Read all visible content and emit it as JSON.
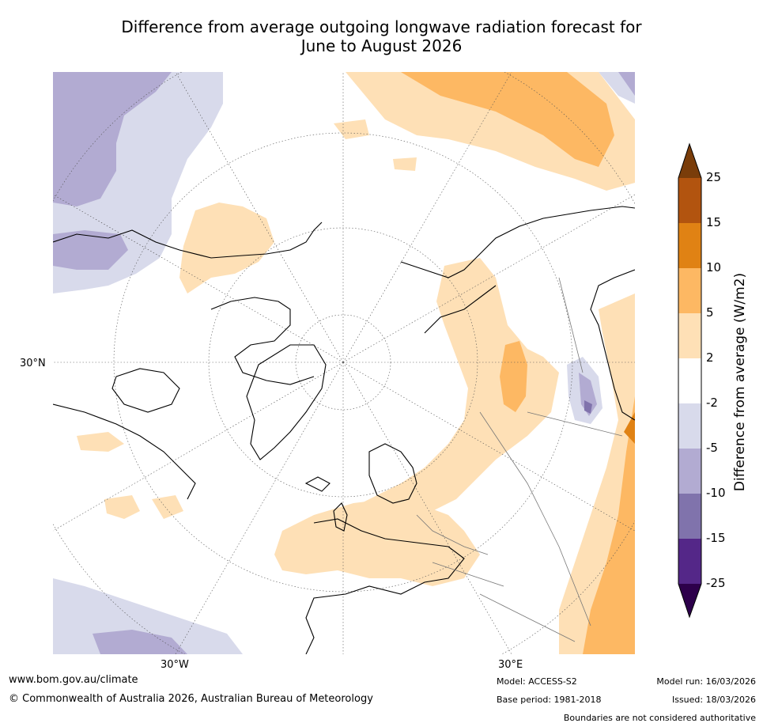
{
  "title": {
    "line1": "Difference from average outgoing longwave radiation forecast for",
    "line2": "June to August 2026"
  },
  "axis_labels": {
    "lat30": "30°N",
    "lon30w": "30°W",
    "lon30e": "30°E"
  },
  "colorbar": {
    "label": "Difference from average (W/m2)",
    "ticks": [
      "25",
      "15",
      "10",
      "5",
      "2",
      "-2",
      "-5",
      "-10",
      "-15",
      "-25"
    ],
    "colors": {
      "over": "#7a3d0a",
      "b15_25": "#b2540f",
      "b10_15": "#e08214",
      "b5_10": "#fdb863",
      "b2_5": "#fee0b6",
      "neutral": "#ffffff",
      "n2_5": "#d8daeb",
      "n5_10": "#b2abd2",
      "n10_15": "#8073ac",
      "n15_25": "#542788",
      "under": "#2d004b"
    }
  },
  "footer": {
    "website": "www.bom.gov.au/climate",
    "copyright": "© Commonwealth of Australia 2026, Australian Bureau of Meteorology",
    "model": "Model: ACCESS-S2",
    "base_period": "Base period: 1981-2018",
    "model_run": "Model run: 16/03/2026",
    "issued": "Issued: 18/03/2026",
    "disclaimer": "Boundaries are not considered authoritative"
  }
}
